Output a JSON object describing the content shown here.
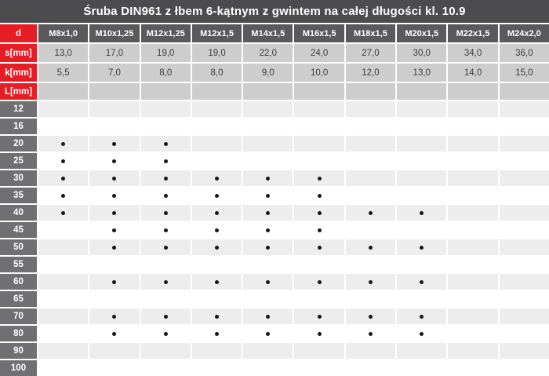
{
  "chart_data": {
    "type": "table",
    "title": "Śruba DIN961 z łbem 6-kątnym z gwintem na całej długości kl. 10.9",
    "corner_label": "d",
    "columns": [
      "M8x1,0",
      "M10x1,25",
      "M12x1,25",
      "M12x1,5",
      "M14x1,5",
      "M16x1,5",
      "M18x1,5",
      "M20x1,5",
      "M22x1,5",
      "M24x2,0"
    ],
    "spec_rows": [
      {
        "label": "s[mm]",
        "values": [
          "13,0",
          "17,0",
          "19,0",
          "19,0",
          "22,0",
          "24,0",
          "27,0",
          "30,0",
          "34,0",
          "36,0"
        ]
      },
      {
        "label": "k[mm]",
        "values": [
          "5,5",
          "7,0",
          "8,0",
          "8,0",
          "9,0",
          "10,0",
          "12,0",
          "13,0",
          "14,0",
          "15,0"
        ]
      },
      {
        "label": "L[mm]",
        "values": [
          "",
          "",
          "",
          "",
          "",
          "",
          "",
          "",
          "",
          ""
        ]
      }
    ],
    "length_rows": [
      {
        "label": "12",
        "dots": [
          0,
          0,
          0,
          0,
          0,
          0,
          0,
          0,
          0,
          0
        ]
      },
      {
        "label": "16",
        "dots": [
          0,
          0,
          0,
          0,
          0,
          0,
          0,
          0,
          0,
          0
        ]
      },
      {
        "label": "20",
        "dots": [
          1,
          1,
          1,
          0,
          0,
          0,
          0,
          0,
          0,
          0
        ]
      },
      {
        "label": "25",
        "dots": [
          1,
          1,
          1,
          0,
          0,
          0,
          0,
          0,
          0,
          0
        ]
      },
      {
        "label": "30",
        "dots": [
          1,
          1,
          1,
          1,
          1,
          1,
          0,
          0,
          0,
          0
        ]
      },
      {
        "label": "35",
        "dots": [
          1,
          1,
          1,
          1,
          1,
          1,
          0,
          0,
          0,
          0
        ]
      },
      {
        "label": "40",
        "dots": [
          1,
          1,
          1,
          1,
          1,
          1,
          1,
          1,
          0,
          0
        ]
      },
      {
        "label": "45",
        "dots": [
          0,
          1,
          1,
          1,
          1,
          1,
          0,
          0,
          0,
          0
        ]
      },
      {
        "label": "50",
        "dots": [
          0,
          1,
          1,
          1,
          1,
          1,
          1,
          1,
          0,
          0
        ]
      },
      {
        "label": "55",
        "dots": [
          0,
          0,
          0,
          0,
          0,
          0,
          0,
          0,
          0,
          0
        ]
      },
      {
        "label": "60",
        "dots": [
          0,
          1,
          1,
          1,
          1,
          1,
          1,
          1,
          0,
          0
        ]
      },
      {
        "label": "65",
        "dots": [
          0,
          0,
          0,
          0,
          0,
          0,
          0,
          0,
          0,
          0
        ]
      },
      {
        "label": "70",
        "dots": [
          0,
          1,
          1,
          1,
          1,
          1,
          1,
          1,
          0,
          0
        ]
      },
      {
        "label": "80",
        "dots": [
          0,
          1,
          1,
          1,
          1,
          1,
          1,
          1,
          0,
          0
        ]
      },
      {
        "label": "90",
        "dots": [
          0,
          0,
          0,
          0,
          0,
          0,
          0,
          0,
          0,
          0
        ]
      },
      {
        "label": "100",
        "dots": [
          0,
          0,
          0,
          0,
          0,
          0,
          0,
          0,
          0,
          0
        ]
      }
    ]
  },
  "icons": {
    "availability_dot": "•"
  },
  "colors": {
    "title_bg": "#4c4c4e",
    "header_bg": "#5a5a5c",
    "label_bg": "#707072",
    "red": "#e81c24",
    "value_bg": "#cdcdcd",
    "value_text": "#3c3c3e",
    "alt_row_bg": "#ededed",
    "white_row_bg": "#ffffff",
    "dot": "#161616"
  }
}
